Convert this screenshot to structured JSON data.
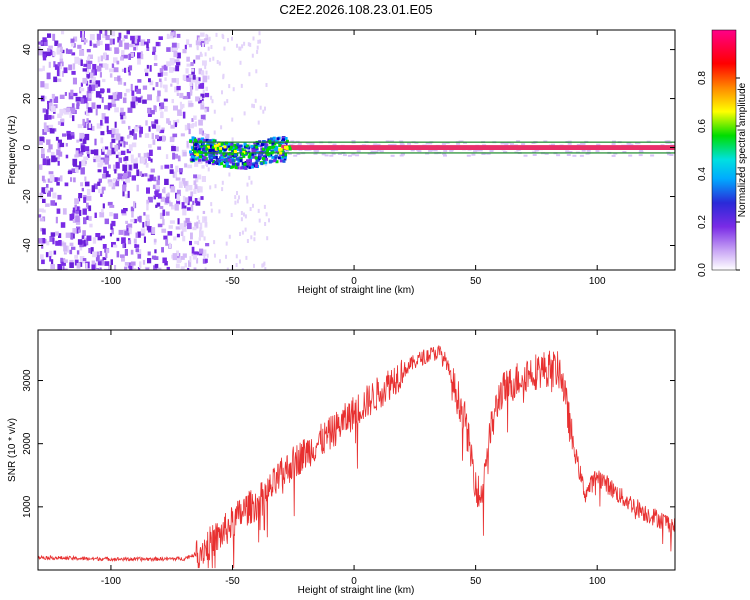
{
  "title": "C2E2.2026.108.23.01.E05",
  "colors": {
    "snr_line": "#e83030",
    "doppler_band": "#e8306a",
    "doppler_outline": "#1a8a2a",
    "noise_purple": "#7a2be6"
  },
  "chart_data": [
    {
      "type": "heatmap",
      "xlabel": "Height of straight line (km)",
      "ylabel": "Frequency (Hz)",
      "xlim": [
        -130,
        132
      ],
      "ylim": [
        -50,
        48
      ],
      "xticks": [
        -100,
        -50,
        0,
        50,
        100
      ],
      "yticks": [
        -40,
        -20,
        0,
        20,
        40
      ],
      "colorbar": {
        "label": "Normalized spectral amplitude",
        "range": [
          0,
          1
        ],
        "ticks": [
          "0.0",
          "0.2",
          "0.4",
          "0.6",
          "0.8"
        ],
        "colormap": [
          "#ffffff",
          "#c9a6f5",
          "#7a2be6",
          "#2a2ad8",
          "#00aaff",
          "#00e0e0",
          "#00dd00",
          "#ffff00",
          "#ff8800",
          "#ff0000",
          "#ff0088"
        ]
      },
      "regions": [
        {
          "x_range": [
            -130,
            -65
          ],
          "freq_range": [
            -50,
            48
          ],
          "level": 0.25
        },
        {
          "x_range": [
            -68,
            -28
          ],
          "freq_range": [
            -6,
            4
          ],
          "level": 0.45
        },
        {
          "x_range": [
            -30,
            132
          ],
          "freq_range": [
            -1,
            1
          ],
          "level": 0.98
        }
      ]
    },
    {
      "type": "line",
      "xlabel": "Height of straight line (km)",
      "ylabel": "SNR (10 * v/v)",
      "xlim": [
        -130,
        132
      ],
      "ylim": [
        0,
        3800
      ],
      "xticks": [
        -100,
        -50,
        0,
        50,
        100
      ],
      "yticks": [
        1000,
        2000,
        3000
      ],
      "series": [
        {
          "x": [
            -130,
            -110,
            -90,
            -70,
            -65,
            -60,
            -55,
            -50,
            -45,
            -40,
            -35,
            -30,
            -25,
            -20,
            -10,
            0,
            10,
            20,
            25,
            30,
            35,
            38,
            40,
            45,
            50,
            52,
            55,
            60,
            70,
            80,
            85,
            90,
            95,
            100,
            110,
            120,
            132
          ],
          "y": [
            200,
            180,
            170,
            180,
            250,
            400,
            550,
            750,
            950,
            1050,
            1250,
            1500,
            1700,
            1850,
            2150,
            2500,
            2800,
            3150,
            3300,
            3400,
            3450,
            3300,
            3000,
            2500,
            1400,
            1100,
            2000,
            2800,
            3100,
            3200,
            3150,
            2000,
            1200,
            1500,
            1150,
            900,
            700
          ]
        }
      ]
    }
  ]
}
